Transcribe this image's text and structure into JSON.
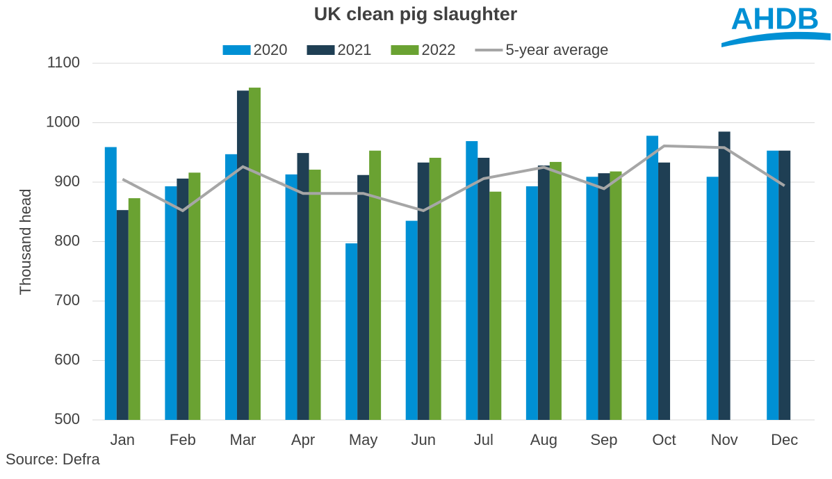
{
  "chart_data": {
    "type": "bar",
    "title": "UK clean pig slaughter",
    "y_label": "Thousand head",
    "source": "Source: Defra",
    "logo": "AHDB",
    "categories": [
      "Jan",
      "Feb",
      "Mar",
      "Apr",
      "May",
      "Jun",
      "Jul",
      "Aug",
      "Sep",
      "Oct",
      "Nov",
      "Dec"
    ],
    "series": [
      {
        "name": "2020",
        "color": "#0090d4",
        "values": [
          959,
          893,
          947,
          913,
          797,
          835,
          969,
          893,
          909,
          978,
          909,
          953
        ]
      },
      {
        "name": "2021",
        "color": "#1f3f54",
        "values": [
          853,
          906,
          1054,
          949,
          912,
          933,
          941,
          928,
          915,
          933,
          985,
          953
        ]
      },
      {
        "name": "2022",
        "color": "#6aa232",
        "values": [
          873,
          916,
          1059,
          921,
          953,
          941,
          884,
          934,
          918,
          null,
          null,
          null
        ]
      },
      {
        "name": "5-year average",
        "color": "#a6a6a6",
        "type": "line",
        "values": [
          905,
          852,
          926,
          881,
          881,
          852,
          906,
          925,
          889,
          961,
          958,
          894
        ]
      }
    ],
    "ylim": [
      500,
      1100
    ],
    "yticks": [
      500,
      600,
      700,
      800,
      900,
      1000,
      1100
    ],
    "grid": true,
    "legend": "top"
  }
}
